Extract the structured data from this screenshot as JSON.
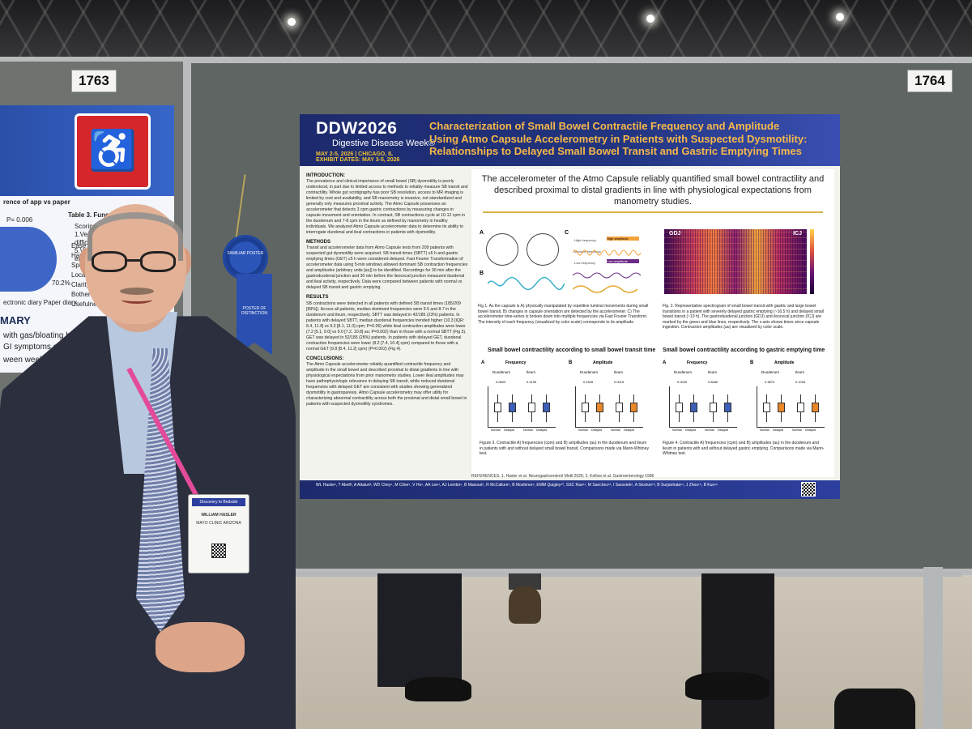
{
  "scene": {
    "board_numbers": [
      "1763",
      "1764"
    ]
  },
  "left_poster": {
    "heading_fragment": "rence of app vs paper",
    "table_title": "Table 3. Functionality",
    "pvalue": "P= 0.006",
    "scoring": "Scoring: 1.Very difficult, 5.Very easy",
    "rows": [
      "Ease of us",
      "Handling",
      "Speed",
      "Location",
      "Clarity",
      "Bothersome",
      "Usefulness"
    ],
    "legend": "ectronic diary   Paper diary",
    "percent": "70.2%",
    "section": "MARY",
    "line1": "with gas/bloating had s",
    "line2": "GI symptoms compare",
    "line3": "ween week"
  },
  "ribbon": {
    "top": "FAMILIAR POSTER",
    "tail": "POSTER OF DISTINCTION"
  },
  "poster": {
    "logo": "DDW2026",
    "logo_sub": "Digestive Disease Week®",
    "logo_dates": "MAY 2-5, 2026 | CHICAGO, IL",
    "exhibit_dates": "EXHIBIT DATES: MAY 3-5, 2026",
    "title": "Characterization of Small Bowel Contractile Frequency and Amplitude Using Atmo Capsule Accelerometry in Patients with Suspected Dysmotility: Relationships to Delayed Small Bowel Transit and Gastric Emptying Times",
    "lead": "The accelerometer of the Atmo Capsule reliably quantified small bowel contractility and described proximal to distal gradients in line with physiological expectations from manometry studies.",
    "sections": {
      "intro_h": "INTRODUCTION:",
      "intro": "The prevalence and clinical importance of small bowel (SB) dysmotility is poorly understood, in part due to limited access to methods to reliably measure SB transit and contractility. Whole gut scintigraphy has poor SB resolution, access to MR imaging is limited by cost and availability, and SB manometry is invasive, not standardized and generally only measures proximal activity. The Atmo Capsule possesses an accelerometer that detects 3 cpm gastric contractions by measuring changes in capsule movement and orientation. In contrast, SB contractions cycle at 10-12 cpm in the duodenum and 7-8 cpm in the ileum as defined by manometry in healthy individuals. We analyzed Atmo Capsule accelerometer data to determine its ability to interrogate duodenal and ileal contractions in patients with dysmotility.",
      "methods_h": "METHODS",
      "methods": "Transit and accelerometer data from Atmo Capsule tests from 209 patients with suspected gut dysmotility were acquired. SB transit times (SBTT) ≥6 h and gastric emptying times (GET) ≥5 h were considered delayed. Fast Fourier Transformation of accelerometer data using 5-min windows allowed dominant SB contraction frequencies and amplitudes (arbitrary units [au]) to be identified. Recordings for 30 min after the gastroduodenal junction and 30 min before the ileocecal junction measured duodenal and ileal activity, respectively. Data were compared between patients with normal vs delayed SB transit and gastric emptying.",
      "results_h": "RESULTS",
      "results": "SB contractions were detected in all patients with defined SB transit times (185/209 [89%]). Across all patients, median dominant frequencies were 9.5 and 8.7 in the duodenum and ileum, respectively. SBTT was delayed in 42/185 (23%) patients. In patients with delayed SBTT, median duodenal frequencies trended higher (10.3 [IQR: 8.4, 11.4] vs 9.3 [8.1, 11.0] cpm; P=0.06) while ileal contraction amplitudes were lower (7.2 [5.1, 9.0] vs 9.0 [7.2, 10.8] au; P=0.002) than in those with a normal SBTT (Fig 3). GET was delayed in 52/185 (28%) patients. In patients with delayed GET, duodenal contraction frequencies were lower (8.2 [7.4, 10.4] cpm) compared to those with a normal GET (9.8 [8.4, 11.2] cpm) (P=0.002) (Fig 4).",
      "concl_h": "CONCLUSIONS:",
      "concl": "The Atmo Capsule accelerometer reliably quantified contractile frequency and amplitude in the small bowel and described proximal to distal gradients in line with physiological expectations from prior manometry studies. Lower ileal amplitudes may have pathophysiologic relevance in delaying SB transit, while reduced duodenal frequencies with delayed GET are consistent with studies showing generalized dysmotility in gastroparesis. Atmo Capsule accelerometry may offer utility for characterizing abnormal contractility across both the proximal and distal small bowel in patients with suspected dysmotility syndromes."
    },
    "fig_labels": {
      "a": "A",
      "b": "B",
      "c": "C",
      "high_freq": "High frequency",
      "med_freq": "Medium frequency",
      "low_freq": "Low frequency",
      "high_amp": "High amplitude",
      "low_amp": "Low amplitude",
      "gdj": "GDJ",
      "icj": "ICJ"
    },
    "fig1_caption": "Fig 1. As the capsule is A) physically manipulated by repetitive luminal movements during small bowel transit, B) changes in capsule orientation are detected by the accelerometer. C) The accelerometer time-series is broken down into multiple frequencies via Fast Fourier Transform. The intensity of each frequency (visualized by color scale) corresponds to its amplitude.",
    "fig2_caption": "Fig. 2. Representative spectrogram of small bowel transit with gastric and large bowel transitions in a patient with severely delayed gastric emptying (~16.5 h) and delayed small bowel transit (~19 h). The gastroduodenal junction (GDJ) and ileocecal junction (ICJ) are marked by the green and blue lines, respectively. The x-axis shows times since capsule ingestion. Contraction amplitudes (au) are visualized by color scale.",
    "fig3_title": "Small bowel contractility according to small bowel transit time",
    "fig4_title": "Small bowel contractility according to gastric emptying time",
    "panel": {
      "frequency": "Frequency",
      "amplitude": "Amplitude",
      "duodenum": "Duodenum",
      "ileum": "Ileum",
      "normal": "Normal",
      "delayed": "Delayed"
    },
    "pvals3": [
      "0.0603",
      "0.4195",
      "0.1526",
      "0.0019"
    ],
    "pvals4": [
      "0.0020",
      "0.8280",
      "0.3870",
      "0.1033"
    ],
    "fig3_caption": "Figure 3. Contractile A) frequencies (cpm) and B) amplitudes (au) in the duodenum and ileum in patients with and without delayed small bowel transit. Comparisons made via Mann-Whitney test.",
    "fig4_caption": "Figure 4. Contractile A) frequencies (cpm) and B) amplitudes (au) in the duodenum and ileum in patients with and without delayed gastric emptying. Comparisons made via Mann-Whitney test.",
    "refs": "REFERENCES: 1. Hasler et al. Neurogastroenterol Motil 2026; 2. Kellow et al. Gastroenterology 1986",
    "authors": "WL Hasler¹, T Abell², A Attaluri³, WD Chey⁴, M Cline⁵, V Ho⁶, AA Lee⁴, AJ Lembo⁵, B Masoud⁷, R McCallum⁸, B Moshiree⁹, EMM Quigley¹⁰, SSC Rao¹¹, M Sanchez¹², I Sarosiek⁸, A Stocker¹³, B Surjanhata¹⁴, J Zhou¹⁵, B Kuo¹⁶"
  },
  "badge": {
    "band": "Discovery to Bedside",
    "name": "WILLIAM HASLER",
    "org": "MAYO CLINIC ARIZONA"
  }
}
